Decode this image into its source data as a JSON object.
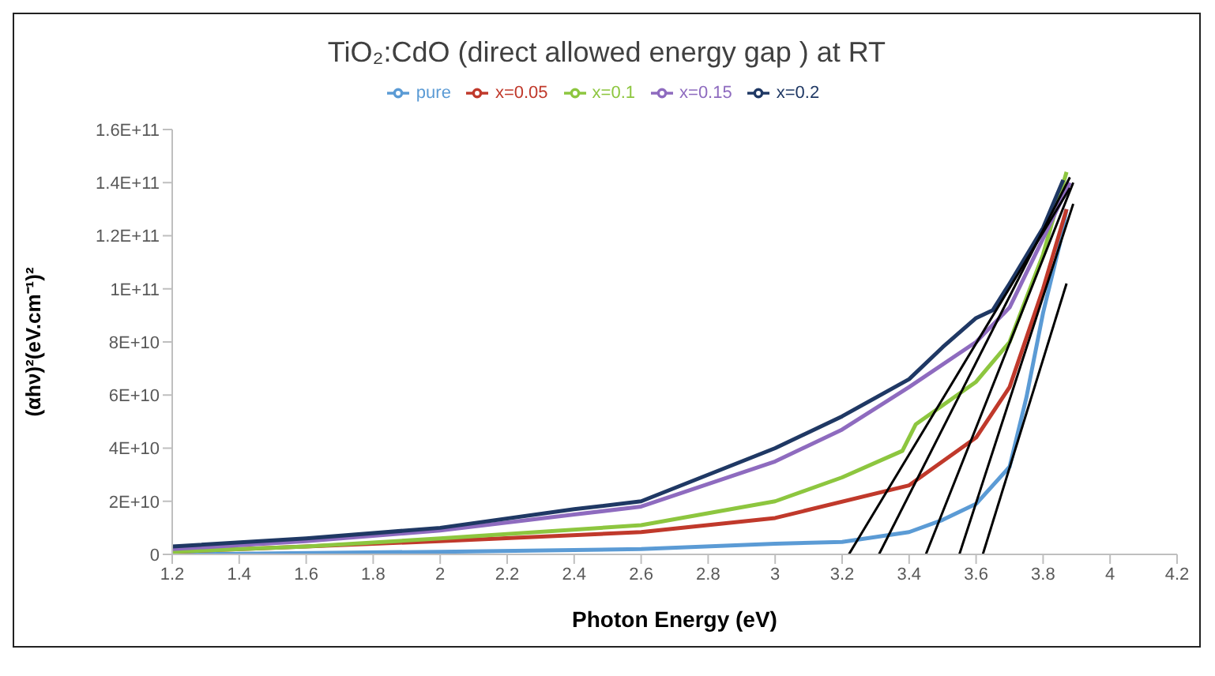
{
  "chart_data": {
    "type": "line",
    "title": "TiO₂:CdO (direct allowed energy gap ) at RT",
    "xlabel": "Photon Energy (eV)",
    "ylabel": "(αhν)²(eV.cm⁻¹)²",
    "xlim": [
      1.2,
      4.2
    ],
    "xticks": [
      1.2,
      1.4,
      1.6,
      1.8,
      2,
      2.2,
      2.4,
      2.6,
      2.8,
      3,
      3.2,
      3.4,
      3.6,
      3.8,
      4,
      4.2
    ],
    "ylim": [
      0,
      160000000000
    ],
    "yticks": [
      0,
      {
        "value": 20000000000,
        "label": "2E+10"
      },
      {
        "value": 40000000000,
        "label": "4E+10"
      },
      {
        "value": 60000000000,
        "label": "6E+10"
      },
      {
        "value": 80000000000,
        "label": "8E+10"
      },
      {
        "value": 100000000000,
        "label": "1E+11"
      },
      {
        "value": 120000000000,
        "label": "1.2E+11"
      },
      {
        "value": 140000000000,
        "label": "1.4E+11"
      },
      {
        "value": 160000000000,
        "label": "1.6E+11"
      }
    ],
    "grid": false,
    "legend": "top",
    "marker": "none",
    "line_style": "solid",
    "series": [
      {
        "name": "pure",
        "color": "#5b9bd5",
        "x": [
          1.2,
          2,
          2.6,
          3,
          3.2,
          3.4,
          3.5,
          3.6,
          3.7,
          3.75,
          3.8,
          3.85,
          3.87
        ],
        "values": [
          0,
          1000000000,
          2000000000,
          4000000000,
          4700000000,
          8400000000,
          13000000000,
          19000000000,
          33000000000,
          59000000000,
          91000000000,
          117000000000,
          130000000000
        ]
      },
      {
        "name": "x=0.05",
        "color": "#c0392b",
        "x": [
          1.2,
          1.6,
          2,
          2.6,
          3,
          3.4,
          3.6,
          3.7,
          3.8,
          3.87
        ],
        "values": [
          1000000000,
          3000000000,
          5000000000,
          8400000000,
          13700000000,
          26000000000,
          44000000000,
          63000000000,
          100000000000,
          130000000000
        ]
      },
      {
        "name": "x=0.1",
        "color": "#8dc63f",
        "x": [
          1.2,
          1.6,
          2,
          2.6,
          3,
          3.2,
          3.38,
          3.42,
          3.6,
          3.7,
          3.8,
          3.87
        ],
        "values": [
          1000000000,
          3000000000,
          6000000000,
          11000000000,
          20000000000,
          29000000000,
          39000000000,
          49000000000,
          65000000000,
          80000000000,
          113000000000,
          144000000000
        ]
      },
      {
        "name": "x=0.15",
        "color": "#8e6bbf",
        "x": [
          1.2,
          1.6,
          2,
          2.4,
          2.6,
          3,
          3.2,
          3.4,
          3.6,
          3.7,
          3.8,
          3.88
        ],
        "values": [
          2000000000,
          5000000000,
          9000000000,
          15000000000,
          18000000000,
          35000000000,
          47000000000,
          63000000000,
          80000000000,
          93000000000,
          119000000000,
          140000000000
        ]
      },
      {
        "name": "x=0.2",
        "color": "#1f3864",
        "x": [
          1.2,
          1.6,
          2,
          2.4,
          2.6,
          3,
          3.2,
          3.4,
          3.5,
          3.6,
          3.65,
          3.7,
          3.8,
          3.86
        ],
        "values": [
          3000000000,
          6000000000,
          10000000000,
          17000000000,
          20000000000,
          40000000000,
          52000000000,
          66000000000,
          78000000000,
          89000000000,
          92000000000,
          102000000000,
          123000000000,
          141000000000
        ]
      },
      {
        "color": "#000000",
        "x": [
          3.62,
          3.87
        ],
        "values": [
          0,
          102000000000
        ]
      },
      {
        "color": "#000000",
        "x": [
          3.55,
          3.89
        ],
        "values": [
          0,
          132000000000
        ]
      },
      {
        "color": "#000000",
        "x": [
          3.45,
          3.89
        ],
        "values": [
          0,
          140000000000
        ]
      },
      {
        "color": "#000000",
        "x": [
          3.31,
          3.88
        ],
        "values": [
          0,
          142000000000
        ]
      },
      {
        "color": "#000000",
        "x": [
          3.22,
          3.88
        ],
        "values": [
          0,
          138000000000
        ]
      }
    ]
  }
}
